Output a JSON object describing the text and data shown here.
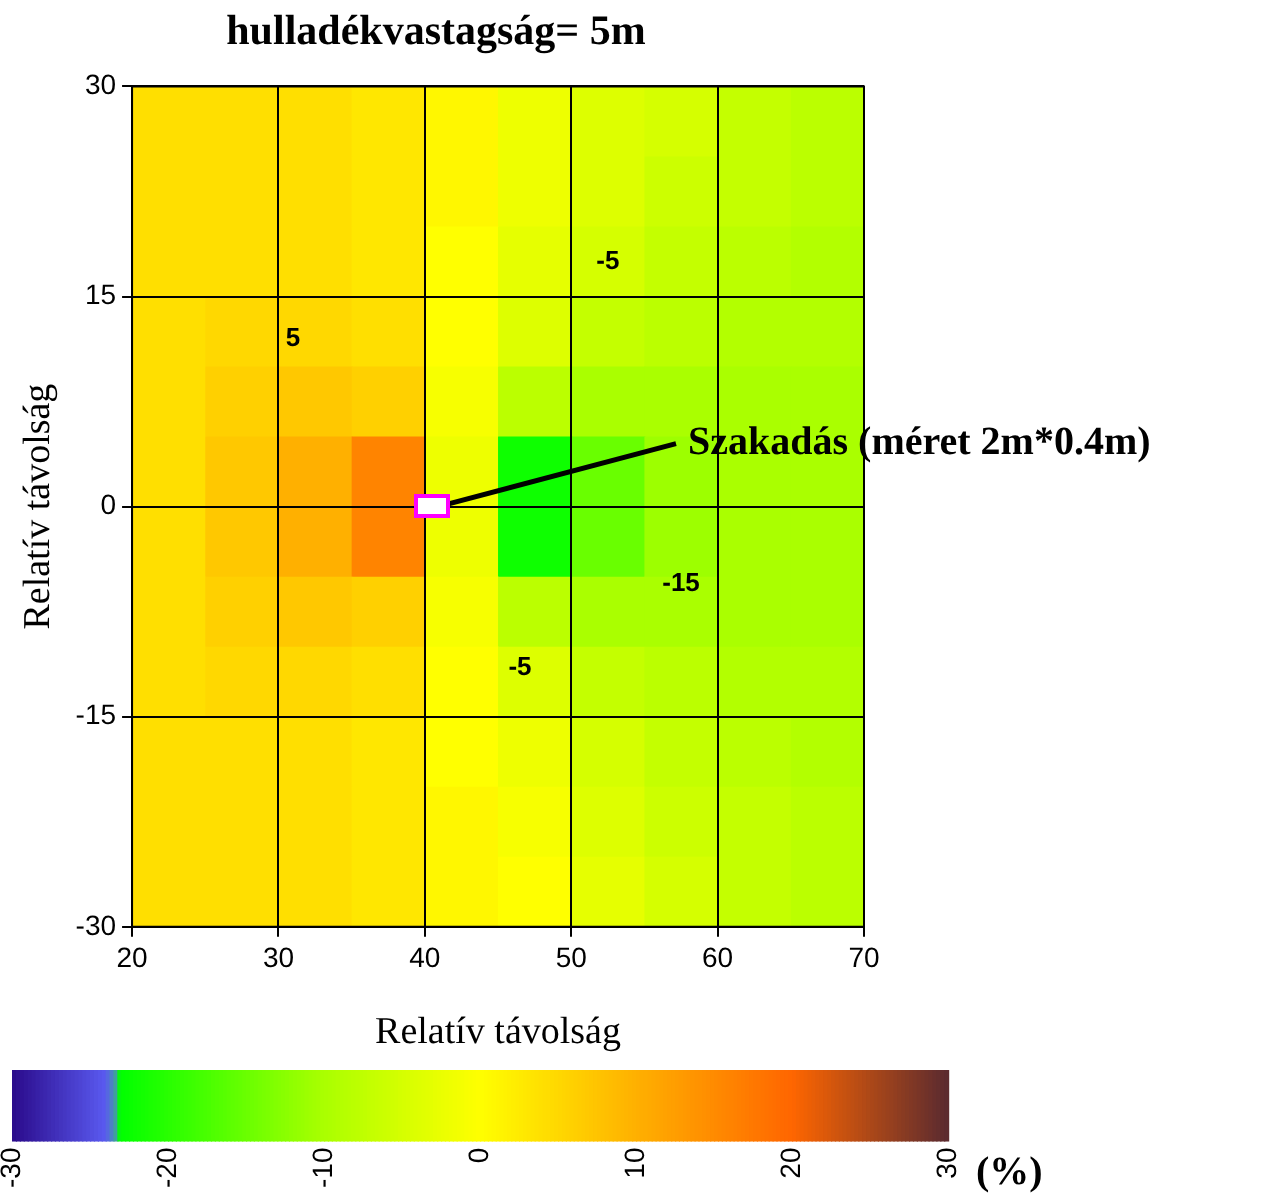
{
  "chart_data": {
    "type": "heatmap",
    "title": "hulladékvastagság= 5m",
    "xlabel": "Relatív távolság",
    "ylabel": "Relatív távolság",
    "clabel": "(%)",
    "x": [
      22.5,
      27.5,
      32.5,
      37.5,
      42.5,
      47.5,
      52.5,
      57.5,
      62.5,
      67.5
    ],
    "y": [
      27.5,
      22.5,
      17.5,
      12.5,
      7.5,
      2.5,
      -2.5,
      -7.5,
      -12.5,
      -17.5,
      -22.5,
      -27.5
    ],
    "cells": [
      [
        4,
        4,
        4,
        3,
        1,
        -2,
        -4,
        -5,
        -7,
        -8
      ],
      [
        4,
        4,
        4,
        3,
        1,
        -2,
        -4,
        -6,
        -7,
        -8
      ],
      [
        4,
        4,
        4,
        3,
        0,
        -3,
        -5,
        -7,
        -8,
        -9
      ],
      [
        4,
        5,
        5,
        4,
        0,
        -4,
        -7,
        -8,
        -9,
        -9
      ],
      [
        4,
        6,
        7,
        6,
        -1,
        -8,
        -10,
        -10,
        -10,
        -10
      ],
      [
        4,
        7,
        10,
        16,
        -2,
        -22,
        -15,
        -11,
        -10,
        -10
      ],
      [
        4,
        7,
        10,
        16,
        -2,
        -22,
        -15,
        -11,
        -10,
        -10
      ],
      [
        4,
        6,
        7,
        6,
        -1,
        -8,
        -10,
        -10,
        -10,
        -10
      ],
      [
        4,
        5,
        5,
        4,
        0,
        -4,
        -7,
        -8,
        -9,
        -9
      ],
      [
        4,
        4,
        4,
        3,
        0,
        -2,
        -5,
        -7,
        -8,
        -9
      ],
      [
        4,
        4,
        4,
        3,
        1,
        -1,
        -4,
        -6,
        -7,
        -8
      ],
      [
        4,
        4,
        4,
        3,
        1,
        0,
        -3,
        -5,
        -7,
        -8
      ]
    ],
    "xlim": [
      20,
      70
    ],
    "xticks": [
      20,
      30,
      40,
      50,
      60,
      70
    ],
    "ylim": [
      -30,
      30
    ],
    "yticks": [
      -30,
      -15,
      0,
      15,
      30
    ],
    "clim": [
      -30,
      30
    ],
    "cticks": [
      -30,
      -20,
      -10,
      0,
      10,
      20,
      30
    ],
    "grid": true,
    "annotations": [
      "5",
      "-5",
      "-15",
      "-5",
      "Szakadás (méret 2m*0.4m)"
    ]
  }
}
